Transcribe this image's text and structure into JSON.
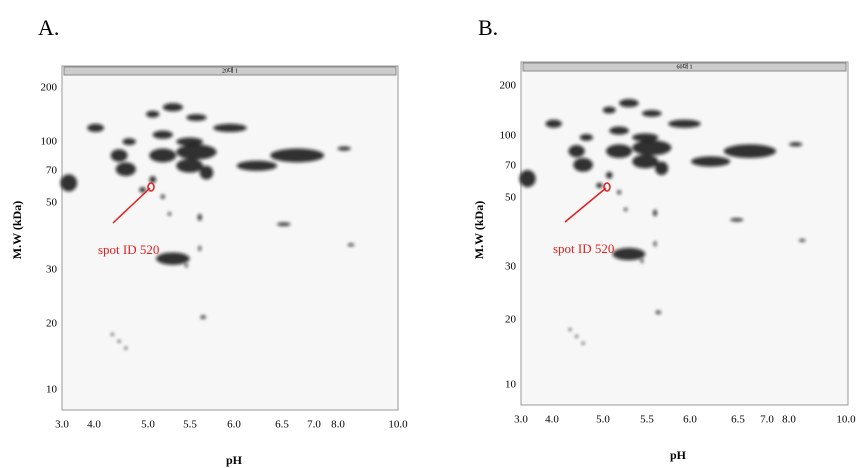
{
  "panels": [
    {
      "label": "A.",
      "header": "20대 1",
      "y_axis_label": "M.W (kDa)",
      "y_ticks": [
        "200",
        "100",
        "70",
        "50",
        "30",
        "20",
        "10"
      ],
      "x_ticks": [
        "3.0",
        "4.0",
        "5.0",
        "5.5",
        "6.0",
        "6.5",
        "7.0",
        "8.0",
        "10.0"
      ],
      "x_axis_label": "pH",
      "annotation": "spot ID 520"
    },
    {
      "label": "B.",
      "header": "60대 1",
      "y_axis_label": "M.W (kDa)",
      "y_ticks": [
        "200",
        "100",
        "70",
        "50",
        "30",
        "20",
        "10"
      ],
      "x_ticks": [
        "3.0",
        "4.0",
        "5.0",
        "5.5",
        "6.0",
        "6.5",
        "7.0",
        "8.0",
        "10.0"
      ],
      "x_axis_label": "pH",
      "annotation": "spot ID 520"
    }
  ]
}
